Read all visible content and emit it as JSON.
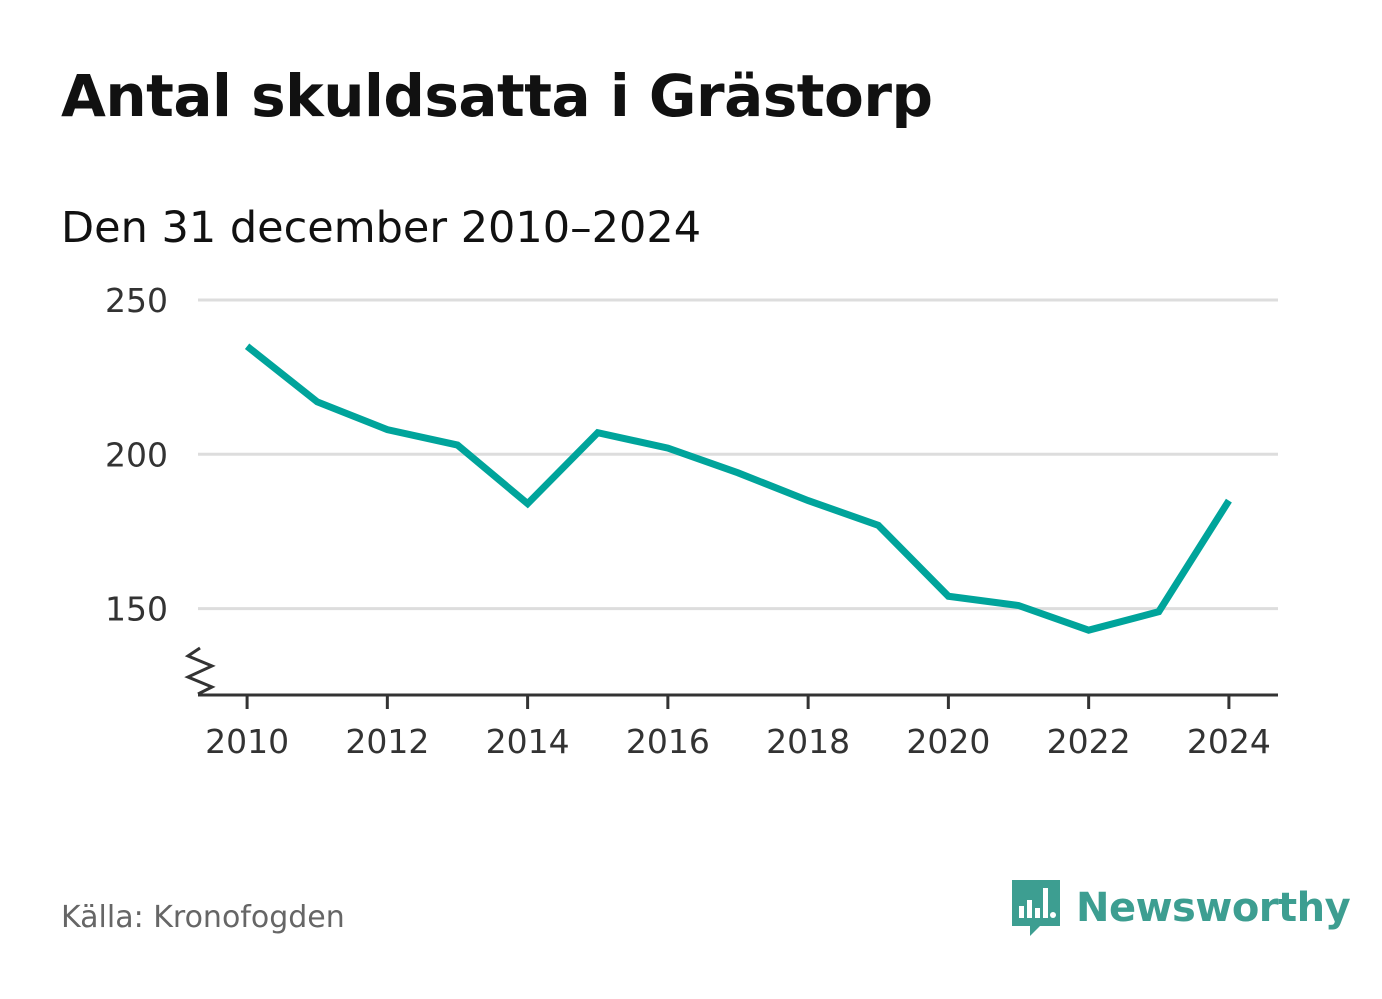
{
  "header": {
    "title": "Antal skuldsatta i Grästorp",
    "subtitle": "Den 31 december 2010–2024"
  },
  "footer": {
    "source": "Källa: Kronofogden",
    "brand": "Newsworthy"
  },
  "colors": {
    "line": "#00a49b",
    "grid": "#dddddd",
    "axis": "#333333",
    "brand": "#3d9e91"
  },
  "chart_data": {
    "type": "line",
    "title": "Antal skuldsatta i Grästorp",
    "subtitle": "Den 31 december 2010–2024",
    "xlabel": "",
    "ylabel": "",
    "x": [
      2010,
      2011,
      2012,
      2013,
      2014,
      2015,
      2016,
      2017,
      2018,
      2019,
      2020,
      2021,
      2022,
      2023,
      2024
    ],
    "series": [
      {
        "name": "Antal skuldsatta",
        "values": [
          235,
          217,
          208,
          203,
          184,
          207,
          202,
          194,
          185,
          177,
          154,
          151,
          143,
          149,
          185
        ]
      }
    ],
    "xlim": [
      2009.3,
      2024.7
    ],
    "ylim": [
      122,
      250
    ],
    "yticks": [
      150,
      200,
      250
    ],
    "xticks": [
      2010,
      2012,
      2014,
      2016,
      2018,
      2020,
      2022,
      2024
    ],
    "ytick_labels": [
      "150",
      "200",
      "250"
    ],
    "xtick_labels": [
      "2010",
      "2012",
      "2014",
      "2016",
      "2018",
      "2020",
      "2022",
      "2024"
    ],
    "grid": true,
    "axis_break": true
  }
}
